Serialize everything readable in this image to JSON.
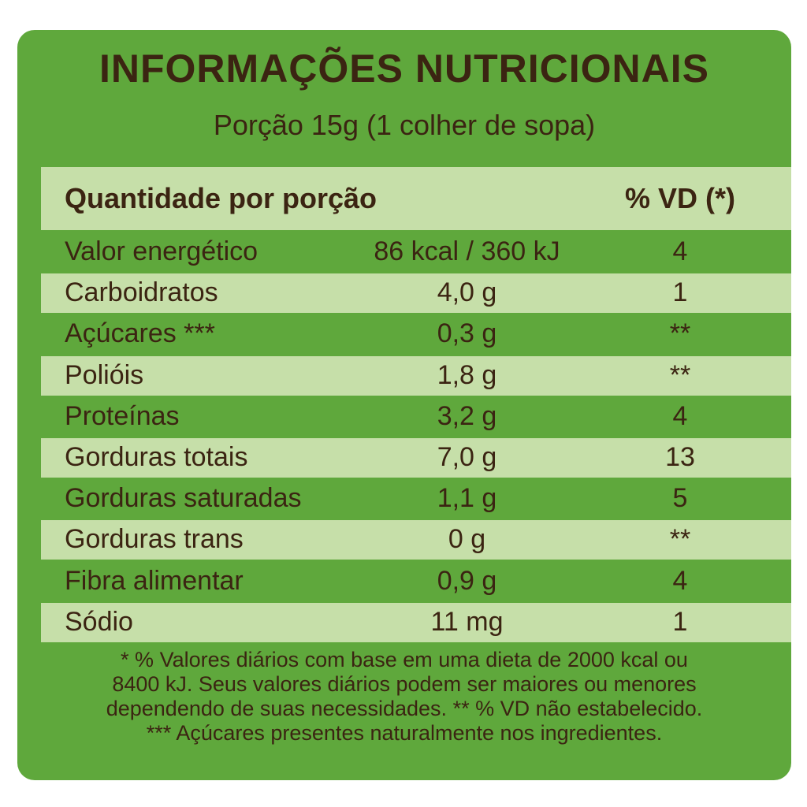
{
  "header": {
    "title": "INFORMAÇÕES NUTRICIONAIS",
    "subtitle": "Porção 15g (1 colher de sopa)"
  },
  "table": {
    "columns": [
      "Quantidade por porção",
      "% VD (*)"
    ],
    "rows": [
      [
        "Valor energético",
        "86 kcal / 360 kJ",
        "4"
      ],
      [
        "Carboidratos",
        "4,0 g",
        "1"
      ],
      [
        "Açúcares ***",
        "0,3 g",
        "**"
      ],
      [
        "Polióis",
        "1,8 g",
        "**"
      ],
      [
        "Proteínas",
        "3,2 g",
        "4"
      ],
      [
        "Gorduras totais",
        "7,0 g",
        "13"
      ],
      [
        "Gorduras saturadas",
        "1,1 g",
        "5"
      ],
      [
        "Gorduras trans",
        "0 g",
        "**"
      ],
      [
        "Fibra alimentar",
        "0,9 g",
        "4"
      ],
      [
        "Sódio",
        "11 mg",
        "1"
      ]
    ]
  },
  "footnotes": [
    "* % Valores diários com base em uma dieta de 2000 kcal ou",
    "8400 kJ. Seus valores diários podem ser maiores ou menores",
    "dependendo de suas necessidades. ** % VD não estabelecido.",
    "*** Açúcares presentes naturalmente nos ingredientes."
  ]
}
